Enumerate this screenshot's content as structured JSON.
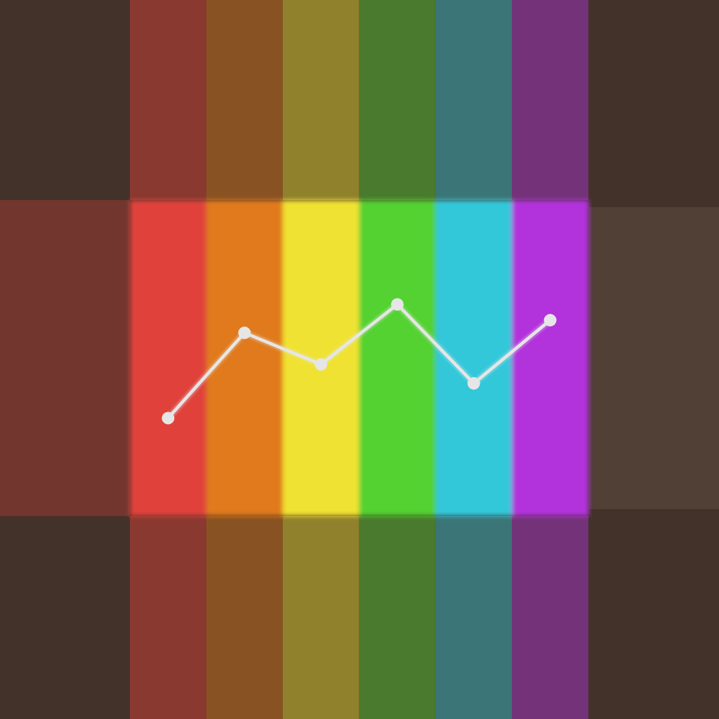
{
  "chart_data": {
    "type": "line",
    "categories": [
      null,
      null,
      null,
      null,
      null,
      null
    ],
    "values": [
      31,
      58,
      48,
      67,
      42,
      62
    ],
    "color": "#e6e6e6",
    "colors": [
      "#e0423a",
      "#e07a1a",
      "#f0e232",
      "#52d232",
      "#32c8da",
      "#b232dc"
    ],
    "marker": "circle",
    "ylim": [
      0,
      100
    ],
    "tick_labels": false
  }
}
